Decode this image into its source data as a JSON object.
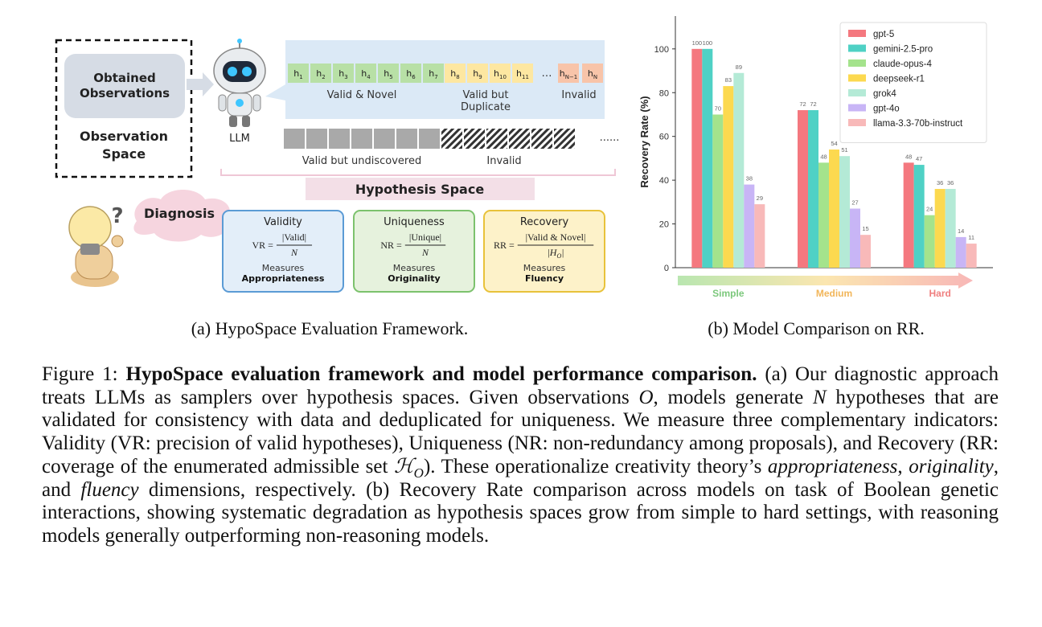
{
  "diagram": {
    "observed": [
      "Obtained",
      "Observations"
    ],
    "observation_space": [
      "Observation",
      "Space"
    ],
    "llm": "LLM",
    "hypotheses": [
      {
        "base": "h",
        "sub": "1"
      },
      {
        "base": "h",
        "sub": "2"
      },
      {
        "base": "h",
        "sub": "3"
      },
      {
        "base": "h",
        "sub": "4"
      },
      {
        "base": "h",
        "sub": "5"
      },
      {
        "base": "h",
        "sub": "6"
      },
      {
        "base": "h",
        "sub": "7"
      },
      {
        "base": "h",
        "sub": "8"
      },
      {
        "base": "h",
        "sub": "9"
      },
      {
        "base": "h",
        "sub": "10"
      },
      {
        "base": "h",
        "sub": "11"
      },
      "…",
      {
        "base": "h",
        "sub": "N−1"
      },
      {
        "base": "h",
        "sub": "N"
      }
    ],
    "group_labels": {
      "valid_novel": "Valid & Novel",
      "valid_duplicate": [
        "Valid but",
        "Duplicate"
      ],
      "invalid": "Invalid"
    },
    "space_labels": {
      "undiscovered": "Valid but undiscovered",
      "invalid": "Invalid",
      "more": "......"
    },
    "hypothesis_space": "Hypothesis Space",
    "diagnosis": "Diagnosis",
    "question": "?",
    "metrics": [
      {
        "title": "Validity",
        "lhs": "VR =",
        "num": "|Valid|",
        "den": {
          "base": "N"
        },
        "measures": "Measures",
        "quality": "Appropriateness"
      },
      {
        "title": "Uniqueness",
        "lhs": "NR =",
        "num": "|Unique|",
        "den": {
          "base": "N"
        },
        "measures": "Measures",
        "quality": "Originality"
      },
      {
        "title": "Recovery",
        "lhs": "RR =",
        "num": "|Valid & Novel|",
        "den": {
          "base": "|H",
          "sub": "O",
          "end": "|"
        },
        "measures": "Measures",
        "quality": "Fluency"
      }
    ],
    "subcaption": "(a) HypoSpace Evaluation Framework."
  },
  "chart_data": {
    "type": "bar",
    "subcaption": "(b) Model Comparison on RR.",
    "ylabel": "Recovery Rate (%)",
    "categories": [
      "Simple",
      "Medium",
      "Hard"
    ],
    "category_colors": [
      "#7cc87c",
      "#f2b65a",
      "#ef7f7f"
    ],
    "ylim": [
      0,
      115
    ],
    "yticks": [
      0,
      20,
      40,
      60,
      80,
      100
    ],
    "grid": false,
    "legend": "upper right",
    "series": [
      {
        "name": "gpt-5",
        "color": "#f4787f",
        "values": [
          100,
          72,
          48
        ]
      },
      {
        "name": "gemini-2.5-pro",
        "color": "#4fd1c5",
        "values": [
          100,
          72,
          47
        ]
      },
      {
        "name": "claude-opus-4",
        "color": "#a4e38c",
        "values": [
          70,
          48,
          24
        ]
      },
      {
        "name": "deepseek-r1",
        "color": "#fcd94f",
        "values": [
          83,
          54,
          36
        ]
      },
      {
        "name": "grok4",
        "color": "#b4ead6",
        "values": [
          89,
          51,
          36
        ]
      },
      {
        "name": "gpt-4o",
        "color": "#c8b5f6",
        "values": [
          38,
          27,
          14
        ]
      },
      {
        "name": "llama-3.3-70b-instruct",
        "color": "#f8b9b9",
        "values": [
          29,
          15,
          11
        ]
      }
    ]
  },
  "caption": [
    {
      "t": "Figure 1: "
    },
    {
      "t": "HypoSpace evaluation framework and model performance comparison.",
      "s": "b"
    },
    {
      "t": " (a) Our diagnostic approach treats LLMs as samplers over hypothesis spaces. Given observations "
    },
    {
      "t": "O",
      "s": "i"
    },
    {
      "t": ", models generate "
    },
    {
      "t": "N",
      "s": "i"
    },
    {
      "t": " hypotheses that are validated for consistency with data and deduplicated for uniqueness. We measure three complementary indicators: Validity (VR: precision of valid hypotheses), Uniqueness (NR: non-redundancy among proposals), and Recovery (RR: coverage of the enumerated admissible set "
    },
    {
      "t": "ℋ",
      "s": "i"
    },
    {
      "t": "O",
      "s": "sub"
    },
    {
      "t": "). These operationalize creativity theory’s "
    },
    {
      "t": "appropriateness",
      "s": "i"
    },
    {
      "t": ", "
    },
    {
      "t": "originality",
      "s": "i"
    },
    {
      "t": ", and "
    },
    {
      "t": "fluency",
      "s": "i"
    },
    {
      "t": " dimensions, respectively. (b) Recovery Rate comparison across models on task of Boolean genetic interactions, showing systematic degradation as hypothesis spaces grow from simple to hard settings, with reasoning models generally outperforming non-reasoning models."
    }
  ]
}
